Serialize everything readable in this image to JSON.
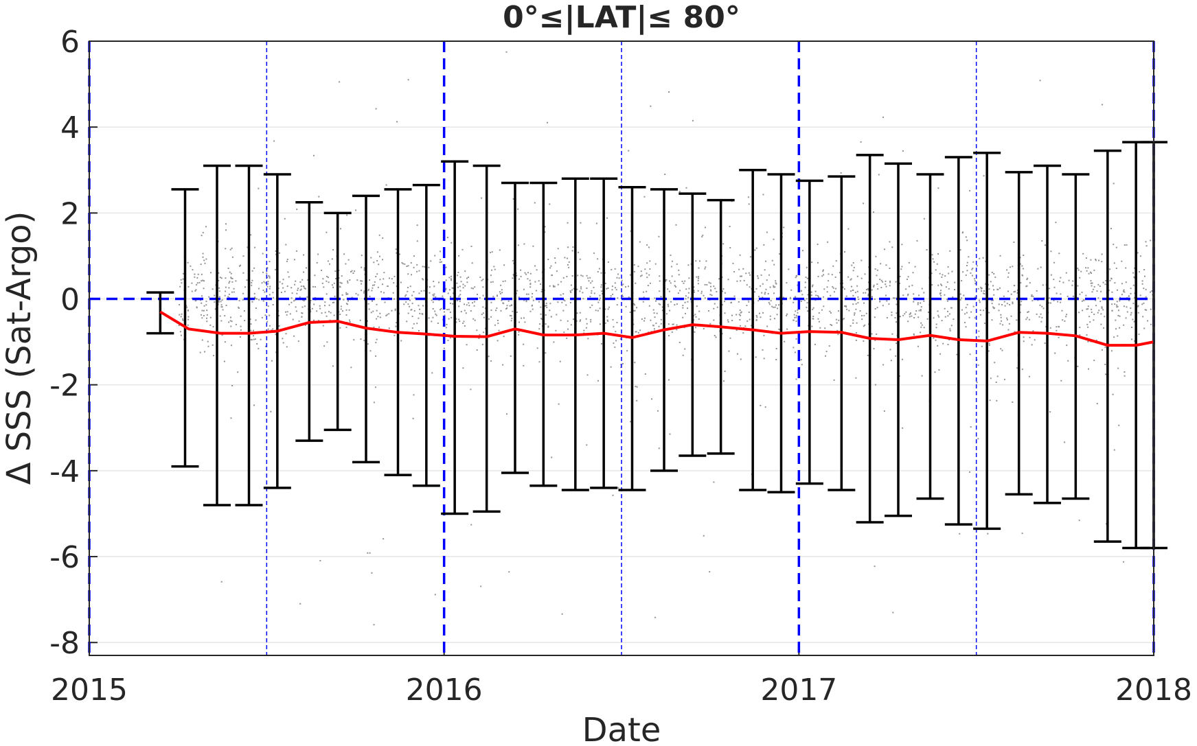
{
  "chart_data": {
    "type": "scatter",
    "title": "0°≤|LAT|≤ 80°",
    "xlabel": "Date",
    "ylabel": "Δ SSS (Sat-Argo)",
    "xlim": [
      2015.0,
      2018.0
    ],
    "ylim": [
      -8.3,
      6.0
    ],
    "xticks": [
      "2015",
      "2016",
      "2017",
      "2018"
    ],
    "yticks": [
      "6",
      "4",
      "2",
      "0",
      "-2",
      "-4",
      "-6",
      "-8"
    ],
    "grid": true,
    "scatter_cloud": {
      "color": "#7f7f7f",
      "x_range": [
        2015.25,
        2018.0
      ],
      "core_range": [
        -1.1,
        1.2
      ],
      "note_points_illustrative": true
    },
    "mean_line": {
      "color": "#ff0000",
      "x": [
        2015.2,
        2015.28,
        2015.37,
        2015.45,
        2015.53,
        2015.62,
        2015.7,
        2015.78,
        2015.87,
        2015.95,
        2016.03,
        2016.12,
        2016.2,
        2016.28,
        2016.37,
        2016.45,
        2016.53,
        2016.62,
        2016.7,
        2016.78,
        2016.87,
        2016.95,
        2017.03,
        2017.12,
        2017.2,
        2017.28,
        2017.37,
        2017.45,
        2017.53,
        2017.62,
        2017.7,
        2017.78,
        2017.87,
        2017.95,
        2018.0
      ],
      "y": [
        -0.3,
        -0.7,
        -0.8,
        -0.8,
        -0.75,
        -0.55,
        -0.52,
        -0.68,
        -0.78,
        -0.82,
        -0.87,
        -0.88,
        -0.7,
        -0.84,
        -0.84,
        -0.8,
        -0.9,
        -0.72,
        -0.6,
        -0.65,
        -0.72,
        -0.8,
        -0.76,
        -0.78,
        -0.92,
        -0.95,
        -0.85,
        -0.95,
        -0.98,
        -0.78,
        -0.8,
        -0.86,
        -1.08,
        -1.08,
        -1.0
      ]
    },
    "error_bars": {
      "color": "#000000",
      "x": [
        2015.2,
        2015.27,
        2015.36,
        2015.45,
        2015.53,
        2015.62,
        2015.7,
        2015.78,
        2015.87,
        2015.95,
        2016.03,
        2016.12,
        2016.2,
        2016.28,
        2016.37,
        2016.45,
        2016.53,
        2016.62,
        2016.7,
        2016.78,
        2016.87,
        2016.95,
        2017.03,
        2017.12,
        2017.2,
        2017.28,
        2017.37,
        2017.45,
        2017.53,
        2017.62,
        2017.7,
        2017.78,
        2017.87,
        2017.95,
        2018.0
      ],
      "lower": [
        -0.8,
        -3.9,
        -4.8,
        -4.8,
        -4.4,
        -3.3,
        -3.05,
        -3.8,
        -4.1,
        -4.35,
        -5.0,
        -4.95,
        -4.05,
        -4.35,
        -4.45,
        -4.4,
        -4.45,
        -4.0,
        -3.65,
        -3.6,
        -4.45,
        -4.5,
        -4.3,
        -4.45,
        -5.2,
        -5.05,
        -4.65,
        -5.25,
        -5.35,
        -4.55,
        -4.75,
        -4.65,
        -5.65,
        -5.8,
        -5.8
      ],
      "upper": [
        0.15,
        2.55,
        3.1,
        3.1,
        2.9,
        2.25,
        2.0,
        2.4,
        2.55,
        2.65,
        3.2,
        3.1,
        2.7,
        2.7,
        2.8,
        2.8,
        2.6,
        2.55,
        2.45,
        2.3,
        3.0,
        2.9,
        2.75,
        2.85,
        3.35,
        3.15,
        2.9,
        3.3,
        3.4,
        2.95,
        3.1,
        2.9,
        3.45,
        3.65,
        3.65
      ]
    },
    "reference_lines": {
      "color": "#0000ff",
      "horizontal": [
        0
      ],
      "vertical_major": [
        2015.0,
        2016.0,
        2017.0,
        2018.0
      ],
      "vertical_minor": [
        2015.5,
        2016.5,
        2017.5
      ]
    }
  }
}
